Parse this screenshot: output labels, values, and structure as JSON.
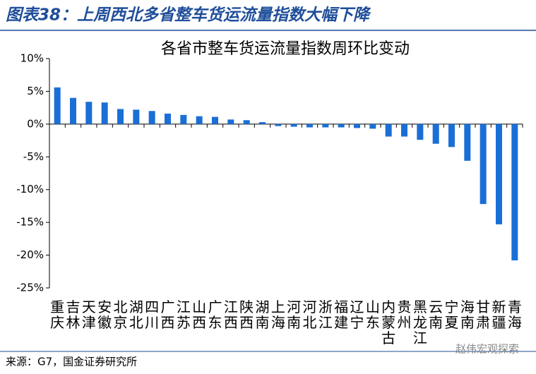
{
  "header": {
    "title": "图表38：上周西北多省整车货运流量指数大幅下降"
  },
  "chart_data": {
    "type": "bar",
    "title": "各省市整车货运流量指数周环比变动",
    "categories": [
      "重庆",
      "吉林",
      "天津",
      "安徽",
      "北京",
      "湖北",
      "四川",
      "广西",
      "江苏",
      "山西",
      "广东",
      "江西",
      "陕西",
      "湖南",
      "上海",
      "河南",
      "河北",
      "浙江",
      "福建",
      "辽宁",
      "山东",
      "内蒙古",
      "贵州",
      "黑龙江",
      "云南",
      "宁夏",
      "海南",
      "甘肃",
      "新疆",
      "青海"
    ],
    "values": [
      5.6,
      4.0,
      3.4,
      3.3,
      2.3,
      2.2,
      2.0,
      1.6,
      1.4,
      1.2,
      1.1,
      0.7,
      0.6,
      0.3,
      -0.3,
      -0.4,
      -0.5,
      -0.5,
      -0.5,
      -0.6,
      -0.7,
      -1.9,
      -1.9,
      -2.4,
      -3.0,
      -3.5,
      -5.6,
      -12.2,
      -15.3,
      -20.8
    ],
    "color": "#1a6fd6",
    "ylim": [
      -25,
      10
    ],
    "yticks": [
      {
        "value": -25,
        "label": "-25%"
      },
      {
        "value": -20,
        "label": "-20%"
      },
      {
        "value": -15,
        "label": "-15%"
      },
      {
        "value": -10,
        "label": "-10%"
      },
      {
        "value": -5,
        "label": "-5%"
      },
      {
        "value": 0,
        "label": "0%"
      },
      {
        "value": 5,
        "label": "5%"
      },
      {
        "value": 10,
        "label": "10%"
      }
    ],
    "grid": false
  },
  "footer": {
    "source": "来源：G7，国金证券研究所",
    "watermark": "赵伟宏观探索"
  }
}
